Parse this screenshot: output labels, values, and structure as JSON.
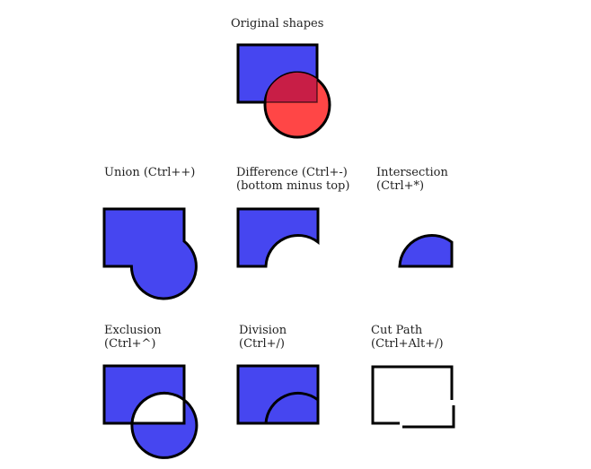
{
  "colors": {
    "blue": "#4646f0",
    "red": "#ff4646",
    "overlap": "#c81e46",
    "stroke": "#000000",
    "text": "#222222"
  },
  "original": {
    "label": "Original shapes"
  },
  "union": {
    "label": "Union (Ctrl++)"
  },
  "difference": {
    "label_line1": "Difference (Ctrl+-)",
    "label_line2": "(bottom minus top)"
  },
  "intersection": {
    "label_line1": "Intersection",
    "label_line2": "(Ctrl+*)"
  },
  "exclusion": {
    "label_line1": "Exclusion",
    "label_line2": "(Ctrl+^)"
  },
  "division": {
    "label_line1": "Division",
    "label_line2": "(Ctrl+/)"
  },
  "cut_path": {
    "label_line1": "Cut Path",
    "label_line2": "(Ctrl+Alt+/)"
  }
}
